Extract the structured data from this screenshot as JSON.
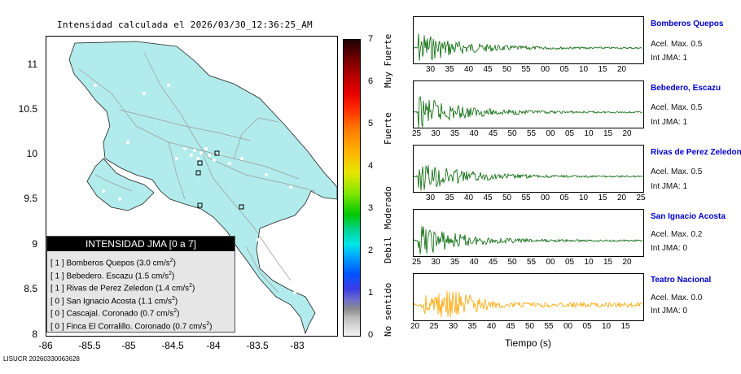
{
  "map": {
    "title": "Intensidad calculada el 2026/03/30_12:36:25_AM",
    "yticks": [
      "11",
      "10.5",
      "10",
      "9.5",
      "9",
      "8.5",
      "8"
    ],
    "xticks": [
      "-86",
      "-85.5",
      "-85",
      "-84.5",
      "-84",
      "-83.5",
      "-83"
    ]
  },
  "legend": {
    "title": "INTENSIDAD JMA [0 a 7]",
    "rows": [
      {
        "int": "[ 1 ]",
        "name": "Bomberos Quepos",
        "val": "(3.0 cm/s",
        "unit": "2",
        ")": ")"
      },
      {
        "int": "[ 1 ]",
        "name": "Bebedero. Escazu",
        "val": "(1.5 cm/s",
        "unit": "2"
      },
      {
        "int": "[ 1 ]",
        "name": "Rivas de Perez Zeledon",
        "val": "(1.4 cm/s",
        "unit": "2"
      },
      {
        "int": "[ 0 ]",
        "name": "San Ignacio Acosta",
        "val": "(1.1 cm/s",
        "unit": "2"
      },
      {
        "int": "[ 0 ]",
        "name": "Cascajal. Coronado",
        "val": "(0.7 cm/s",
        "unit": "2"
      },
      {
        "int": "[ 0 ]",
        "name": "Finca El Corralillo. Coronado",
        "val": "(0.7 cm/s",
        "unit": "2"
      }
    ]
  },
  "colorbar": {
    "ticks": [
      "7",
      "6",
      "5",
      "4",
      "3",
      "2",
      "1",
      "0"
    ],
    "labels": [
      "Muy Fuerte",
      "Fuerte",
      "Moderado",
      "Debil",
      "No sentido"
    ]
  },
  "footer": "LISUCR 20260330063628",
  "traces": [
    {
      "name": "Bomberos Quepos",
      "acel": "Acel. Max. 0.5",
      "int": "Int JMA: 1",
      "color": "#006400",
      "ticks": [
        "30",
        "35",
        "40",
        "45",
        "50",
        "55",
        "00",
        "05",
        "10",
        "15",
        "20"
      ]
    },
    {
      "name": "Bebedero, Escazu",
      "acel": "Acel. Max. 0.5",
      "int": "Int JMA: 1",
      "color": "#006400",
      "ticks": [
        "25",
        "30",
        "35",
        "40",
        "45",
        "50",
        "55",
        "00",
        "05",
        "10",
        "15",
        "20"
      ]
    },
    {
      "name": "Rivas de Perez Zeledon",
      "acel": "Acel. Max. 0.5",
      "int": "Int JMA: 1",
      "color": "#006400",
      "ticks": [
        "30",
        "35",
        "40",
        "45",
        "50",
        "55",
        "00",
        "05",
        "10",
        "15",
        "20",
        "25"
      ]
    },
    {
      "name": "San Ignacio Acosta",
      "acel": "Acel. Max. 0.2",
      "int": "Int JMA: 0",
      "color": "#006400",
      "ticks": [
        "25",
        "30",
        "35",
        "40",
        "45",
        "50",
        "55",
        "00",
        "05",
        "10",
        "15",
        "20"
      ]
    },
    {
      "name": "Teatro Nacional",
      "acel": "Acel. Max. 0.0",
      "int": "Int JMA: 0",
      "color": "#ffa500",
      "ticks": [
        "20",
        "25",
        "30",
        "35",
        "40",
        "45",
        "50",
        "55",
        "00",
        "05",
        "10",
        "15"
      ]
    }
  ],
  "xlabel": "Tiempo (s)"
}
